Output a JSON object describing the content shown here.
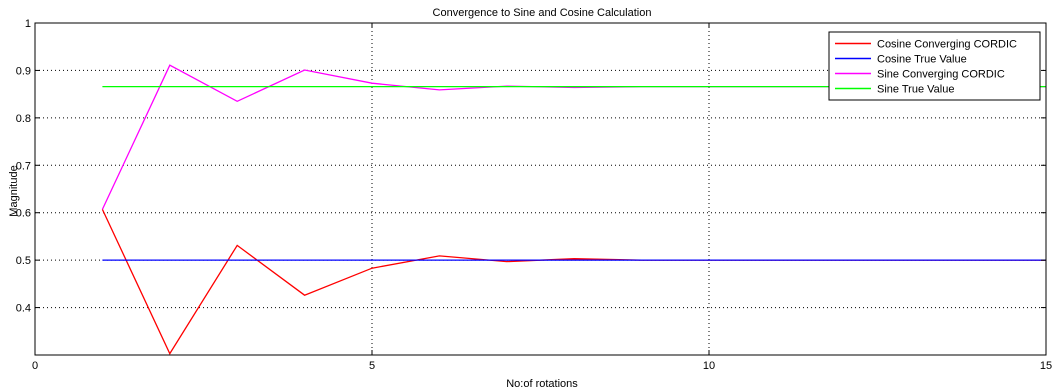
{
  "chart_data": {
    "type": "line",
    "title": "Convergence to Sine and Cosine Calculation",
    "xlabel": "No:of rotations",
    "ylabel": "Magnitude",
    "xlim": [
      0,
      15
    ],
    "ylim": [
      0.3,
      1.0
    ],
    "xticks": [
      0,
      5,
      10,
      15
    ],
    "yticks": [
      0.4,
      0.5,
      0.6,
      0.7,
      0.8,
      0.9,
      1
    ],
    "grid": true,
    "legend_position": "top-right",
    "series": [
      {
        "name": "Cosine Converging CORDIC",
        "color": "#ff0000",
        "x": [
          1,
          2,
          3,
          4,
          5,
          6,
          7,
          8,
          9,
          10,
          11,
          12,
          13,
          14,
          15
        ],
        "values": [
          0.607,
          0.303,
          0.531,
          0.426,
          0.483,
          0.509,
          0.497,
          0.503,
          0.5,
          0.5,
          0.5,
          0.5,
          0.5,
          0.5,
          0.5
        ]
      },
      {
        "name": "Cosine True Value",
        "color": "#0000ff",
        "x": [
          1,
          15
        ],
        "values": [
          0.5,
          0.5
        ]
      },
      {
        "name": "Sine Converging CORDIC",
        "color": "#ff00ff",
        "x": [
          1,
          2,
          3,
          4,
          5,
          6,
          7,
          8,
          9,
          10,
          11,
          12,
          13,
          14,
          15
        ],
        "values": [
          0.607,
          0.911,
          0.835,
          0.901,
          0.873,
          0.859,
          0.867,
          0.864,
          0.866,
          0.866,
          0.866,
          0.866,
          0.866,
          0.866,
          0.866
        ]
      },
      {
        "name": "Sine True Value",
        "color": "#00ff00",
        "x": [
          1,
          15
        ],
        "values": [
          0.866,
          0.866
        ]
      }
    ]
  }
}
